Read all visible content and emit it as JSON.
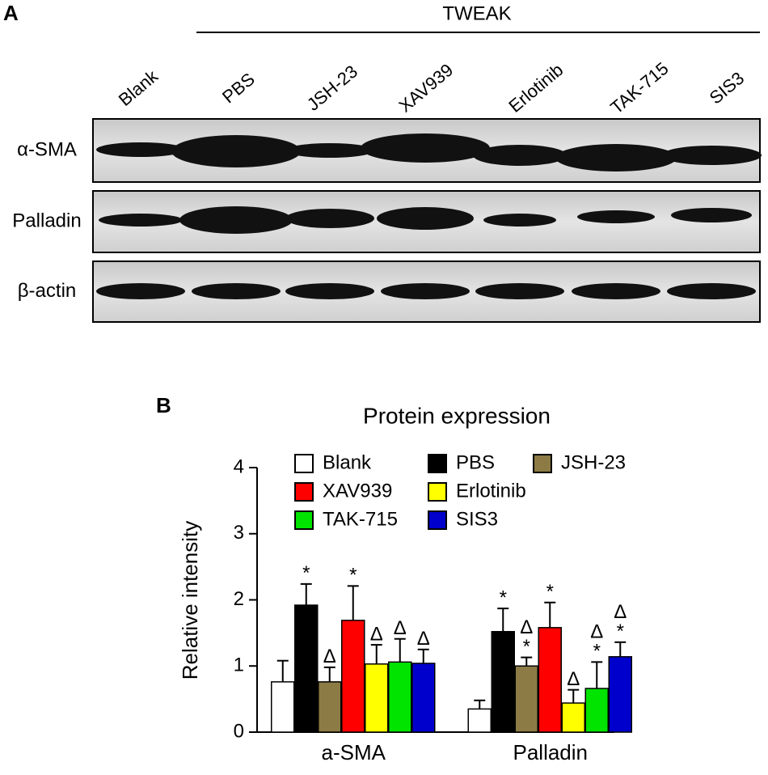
{
  "panel_labels": [
    "A",
    "B"
  ],
  "blot": {
    "header": "TWEAK",
    "lanes": [
      "Blank",
      "PBS",
      "JSH-23",
      "XAV939",
      "Erlotinib",
      "TAK-715",
      "SIS3"
    ],
    "rows": [
      "α-SMA",
      "Palladin",
      "β-actin"
    ]
  },
  "chart_data": {
    "type": "bar",
    "title": "Protein expression",
    "y_label": "Relative intensity",
    "categories": [
      "a-SMA",
      "Palladin"
    ],
    "ylim": [
      0,
      4
    ],
    "yticks": [
      0,
      1,
      2,
      3,
      4
    ],
    "series": [
      {
        "name": "Blank",
        "color": "#ffffff",
        "values": [
          0.76,
          0.35
        ],
        "errors": [
          0.32,
          0.13
        ],
        "annotations": [
          [],
          []
        ]
      },
      {
        "name": "PBS",
        "color": "#000000",
        "values": [
          1.92,
          1.52
        ],
        "errors": [
          0.32,
          0.35
        ],
        "annotations": [
          [
            "*"
          ],
          [
            "*"
          ]
        ]
      },
      {
        "name": "JSH-23",
        "color": "#8c7b45",
        "values": [
          0.76,
          1.0
        ],
        "errors": [
          0.22,
          0.13
        ],
        "annotations": [
          [
            "Δ"
          ],
          [
            "Δ",
            "*"
          ]
        ]
      },
      {
        "name": "XAV939",
        "color": "#ff0000",
        "values": [
          1.69,
          1.58
        ],
        "errors": [
          0.52,
          0.38
        ],
        "annotations": [
          [
            "*"
          ],
          [
            "*"
          ]
        ]
      },
      {
        "name": "Erlotinib",
        "color": "#ffff00",
        "values": [
          1.03,
          0.44
        ],
        "errors": [
          0.29,
          0.2
        ],
        "annotations": [
          [
            "Δ"
          ],
          [
            "Δ"
          ]
        ]
      },
      {
        "name": "TAK-715",
        "color": "#00e400",
        "values": [
          1.06,
          0.66
        ],
        "errors": [
          0.35,
          0.4
        ],
        "annotations": [
          [
            "Δ"
          ],
          [
            "Δ",
            "*"
          ]
        ]
      },
      {
        "name": "SIS3",
        "color": "#0000cc",
        "values": [
          1.04,
          1.14
        ],
        "errors": [
          0.21,
          0.22
        ],
        "annotations": [
          [
            "Δ"
          ],
          [
            "Δ",
            "*"
          ]
        ]
      }
    ]
  }
}
